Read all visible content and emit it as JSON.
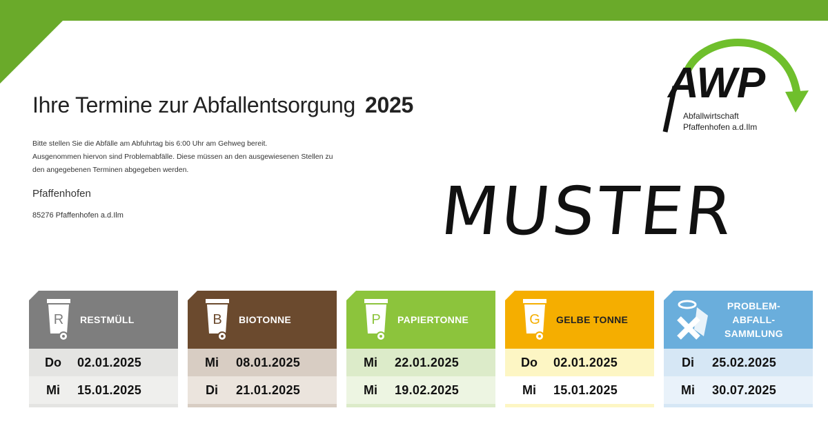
{
  "header": {
    "title": "Ihre Termine zur Abfallentsorgung",
    "year": "2025",
    "intro": [
      "Bitte stellen Sie die Abfälle am Abfuhrtag bis 6:00 Uhr am Gehweg bereit.",
      "Ausgenommen hiervon sind Problemabfälle. Diese müssen an den ausgewiesenen Stellen zu",
      "den angegebenen Terminen abgegeben werden."
    ],
    "city": "Pfaffenhofen",
    "address": "85276 Pfaffenhofen a.d.Ilm"
  },
  "watermark": "MUSTER",
  "logo": {
    "text": "AWP",
    "sub1": "Abfallwirtschaft",
    "sub2": "Pfaffenhofen a.d.Ilm"
  },
  "colors": {
    "brand_green": "#6aaa2a"
  },
  "bins": [
    {
      "letter": "R",
      "label": "RESTMÜLL",
      "color": "#7e7e7e",
      "row1": "#e4e4e2",
      "row2": "#efefed",
      "label_color": "#fff",
      "dates": [
        {
          "day": "Do",
          "date": "02.01.2025"
        },
        {
          "day": "Mi",
          "date": "15.01.2025"
        }
      ]
    },
    {
      "letter": "B",
      "label": "BIOTONNE",
      "color": "#6b4a2e",
      "row1": "#d8cdc3",
      "row2": "#ebe4dd",
      "label_color": "#fff",
      "dates": [
        {
          "day": "Mi",
          "date": "08.01.2025"
        },
        {
          "day": "Di",
          "date": "21.01.2025"
        }
      ]
    },
    {
      "letter": "P",
      "label": "PAPIERTONNE",
      "color": "#8cc43c",
      "row1": "#dcebc9",
      "row2": "#edf5e2",
      "label_color": "#fff",
      "dates": [
        {
          "day": "Mi",
          "date": "22.01.2025"
        },
        {
          "day": "Mi",
          "date": "19.02.2025"
        }
      ]
    },
    {
      "letter": "G",
      "label": "GELBE TONNE",
      "color": "#f5ae00",
      "row1": "#fdf6c4",
      "row2": "#ffffff",
      "label_color": "#222",
      "dates": [
        {
          "day": "Do",
          "date": "02.01.2025"
        },
        {
          "day": "Mi",
          "date": "15.01.2025"
        }
      ]
    },
    {
      "letter": "",
      "label": "PROBLEM-\nABFALL-\nSAMMLUNG",
      "label_lines": [
        "PROBLEM-",
        "ABFALL-",
        "SAMMLUNG"
      ],
      "color": "#6aaedc",
      "row1": "#d6e7f5",
      "row2": "#e9f2fa",
      "label_color": "#fff",
      "dates": [
        {
          "day": "Di",
          "date": "25.02.2025"
        },
        {
          "day": "Mi",
          "date": "30.07.2025"
        }
      ]
    }
  ]
}
